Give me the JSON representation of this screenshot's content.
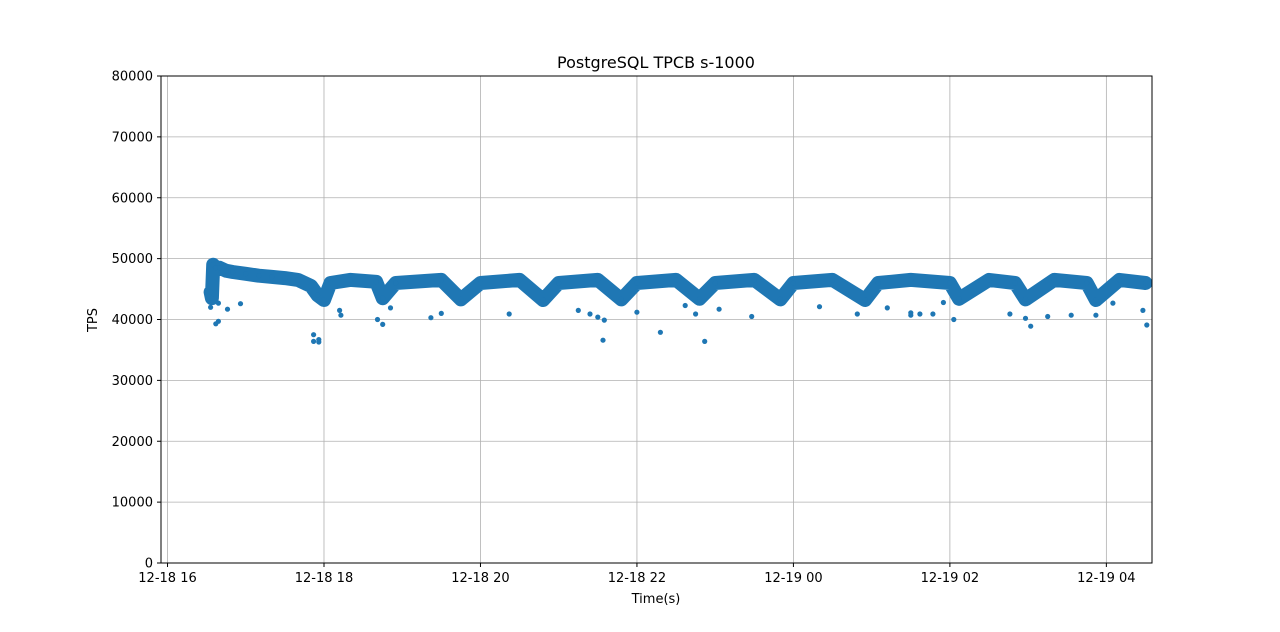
{
  "chart_data": {
    "type": "scatter",
    "title": "PostgreSQL TPCB s-1000",
    "xlabel": "Time(s)",
    "ylabel": "TPS",
    "x_axis": "datetime",
    "xlim": [
      "2020-12-18 15:55",
      "2020-12-19 04:35"
    ],
    "ylim": [
      0,
      80000
    ],
    "y_ticks": [
      0,
      10000,
      20000,
      30000,
      40000,
      50000,
      60000,
      70000,
      80000
    ],
    "x_ticks": [
      {
        "value": "2020-12-18 16:00",
        "label": "12-18 16"
      },
      {
        "value": "2020-12-18 18:00",
        "label": "12-18 18"
      },
      {
        "value": "2020-12-18 20:00",
        "label": "12-18 20"
      },
      {
        "value": "2020-12-18 22:00",
        "label": "12-18 22"
      },
      {
        "value": "2020-12-19 00:00",
        "label": "12-19 00"
      },
      {
        "value": "2020-12-19 02:00",
        "label": "12-19 02"
      },
      {
        "value": "2020-12-19 04:00",
        "label": "12-19 04"
      }
    ],
    "grid": true,
    "marker_color": "#1f77b4",
    "series": [
      {
        "points": [
          [
            "2020-12-18 16:33",
            44500
          ],
          [
            "2020-12-18 16:33",
            42000
          ],
          [
            "2020-12-18 16:34",
            43500
          ],
          [
            "2020-12-18 16:35",
            49000
          ],
          [
            "2020-12-18 16:37",
            48500
          ],
          [
            "2020-12-18 16:40",
            48500
          ],
          [
            "2020-12-18 16:45",
            48000
          ],
          [
            "2020-12-18 16:50",
            47800
          ],
          [
            "2020-12-18 17:00",
            47500
          ],
          [
            "2020-12-18 17:10",
            47200
          ],
          [
            "2020-12-18 17:20",
            47000
          ],
          [
            "2020-12-18 17:30",
            46800
          ],
          [
            "2020-12-18 17:40",
            46500
          ],
          [
            "2020-12-18 17:50",
            45500
          ],
          [
            "2020-12-18 17:55",
            44000
          ],
          [
            "2020-12-18 18:00",
            43200
          ],
          [
            "2020-12-18 18:05",
            46000
          ],
          [
            "2020-12-18 18:20",
            46500
          ],
          [
            "2020-12-18 18:40",
            46200
          ],
          [
            "2020-12-18 18:45",
            43500
          ],
          [
            "2020-12-18 18:55",
            46000
          ],
          [
            "2020-12-18 19:30",
            46500
          ],
          [
            "2020-12-18 19:45",
            43300
          ],
          [
            "2020-12-18 20:00",
            46000
          ],
          [
            "2020-12-18 20:30",
            46500
          ],
          [
            "2020-12-18 20:48",
            43200
          ],
          [
            "2020-12-18 21:00",
            46000
          ],
          [
            "2020-12-18 21:30",
            46500
          ],
          [
            "2020-12-18 21:48",
            43300
          ],
          [
            "2020-12-18 22:00",
            46000
          ],
          [
            "2020-12-18 22:30",
            46500
          ],
          [
            "2020-12-18 22:48",
            43400
          ],
          [
            "2020-12-18 23:00",
            46000
          ],
          [
            "2020-12-18 23:30",
            46500
          ],
          [
            "2020-12-18 23:50",
            43300
          ],
          [
            "2020-12-19 00:00",
            46000
          ],
          [
            "2020-12-19 00:30",
            46500
          ],
          [
            "2020-12-19 00:55",
            43200
          ],
          [
            "2020-12-19 01:05",
            46000
          ],
          [
            "2020-12-19 01:30",
            46500
          ],
          [
            "2020-12-19 02:00",
            46000
          ],
          [
            "2020-12-19 02:07",
            43400
          ],
          [
            "2020-12-19 02:30",
            46500
          ],
          [
            "2020-12-19 02:50",
            46000
          ],
          [
            "2020-12-19 02:58",
            43300
          ],
          [
            "2020-12-19 03:20",
            46500
          ],
          [
            "2020-12-19 03:45",
            46000
          ],
          [
            "2020-12-19 03:52",
            43200
          ],
          [
            "2020-12-19 04:10",
            46500
          ],
          [
            "2020-12-19 04:30",
            46000
          ],
          [
            "2020-12-18 16:37",
            39300
          ],
          [
            "2020-12-18 16:39",
            39700
          ],
          [
            "2020-12-18 16:39",
            42700
          ],
          [
            "2020-12-18 16:46",
            41700
          ],
          [
            "2020-12-18 16:56",
            42600
          ],
          [
            "2020-12-18 17:52",
            37500
          ],
          [
            "2020-12-18 17:52",
            36400
          ],
          [
            "2020-12-18 17:56",
            36700
          ],
          [
            "2020-12-18 17:56",
            36300
          ],
          [
            "2020-12-18 18:12",
            41500
          ],
          [
            "2020-12-18 18:13",
            40700
          ],
          [
            "2020-12-18 18:41",
            40000
          ],
          [
            "2020-12-18 18:45",
            39200
          ],
          [
            "2020-12-18 18:51",
            41900
          ],
          [
            "2020-12-18 19:22",
            40300
          ],
          [
            "2020-12-18 19:30",
            41000
          ],
          [
            "2020-12-18 20:22",
            40900
          ],
          [
            "2020-12-18 21:15",
            41500
          ],
          [
            "2020-12-18 21:24",
            40900
          ],
          [
            "2020-12-18 21:30",
            40400
          ],
          [
            "2020-12-18 21:35",
            39900
          ],
          [
            "2020-12-18 21:34",
            36600
          ],
          [
            "2020-12-18 22:00",
            41200
          ],
          [
            "2020-12-18 22:18",
            37900
          ],
          [
            "2020-12-18 22:37",
            42300
          ],
          [
            "2020-12-18 22:45",
            40900
          ],
          [
            "2020-12-18 22:52",
            36400
          ],
          [
            "2020-12-18 23:03",
            41700
          ],
          [
            "2020-12-18 23:28",
            40500
          ],
          [
            "2020-12-19 00:20",
            42100
          ],
          [
            "2020-12-19 00:49",
            40900
          ],
          [
            "2020-12-19 01:12",
            41900
          ],
          [
            "2020-12-19 01:30",
            41100
          ],
          [
            "2020-12-19 01:30",
            40700
          ],
          [
            "2020-12-19 01:37",
            40900
          ],
          [
            "2020-12-19 01:47",
            40900
          ],
          [
            "2020-12-19 01:55",
            42800
          ],
          [
            "2020-12-19 02:03",
            40000
          ],
          [
            "2020-12-19 02:46",
            40900
          ],
          [
            "2020-12-19 02:58",
            40200
          ],
          [
            "2020-12-19 03:02",
            38900
          ],
          [
            "2020-12-19 03:15",
            40500
          ],
          [
            "2020-12-19 03:33",
            40700
          ],
          [
            "2020-12-19 03:52",
            40700
          ],
          [
            "2020-12-19 04:05",
            42700
          ],
          [
            "2020-12-19 04:28",
            41500
          ],
          [
            "2020-12-19 04:31",
            39100
          ]
        ]
      }
    ]
  }
}
